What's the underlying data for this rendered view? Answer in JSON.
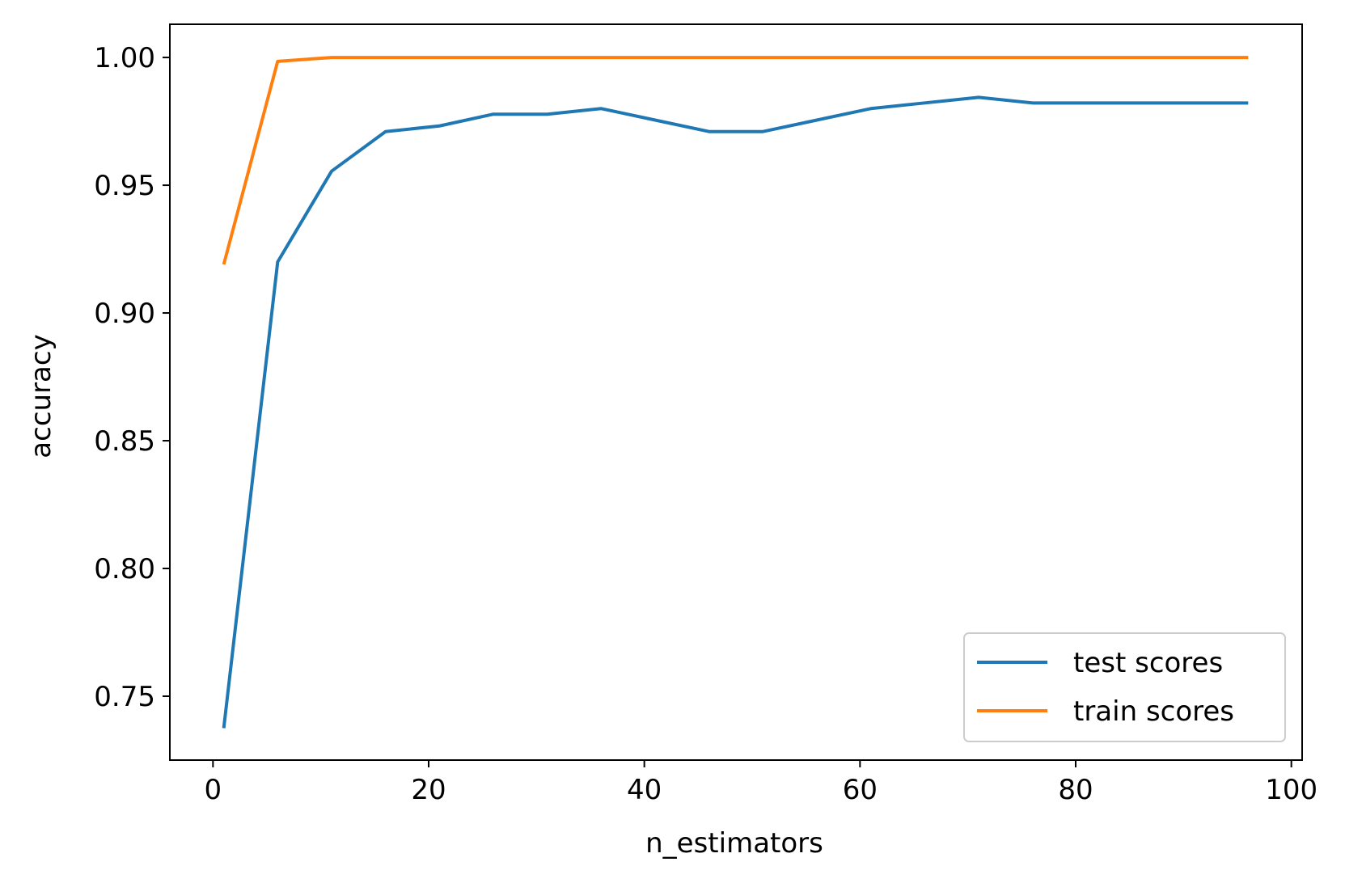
{
  "chart_data": {
    "type": "line",
    "title": "",
    "xlabel": "n_estimators",
    "ylabel": "accuracy",
    "xlim": [
      -4,
      101
    ],
    "ylim": [
      0.725,
      1.013
    ],
    "xticks": [
      0,
      20,
      40,
      60,
      80,
      100
    ],
    "xtick_labels": [
      "0",
      "20",
      "40",
      "60",
      "80",
      "100"
    ],
    "yticks": [
      0.75,
      0.8,
      0.85,
      0.9,
      0.95,
      1.0
    ],
    "ytick_labels": [
      "0.75",
      "0.80",
      "0.85",
      "0.90",
      "0.95",
      "1.00"
    ],
    "grid": false,
    "legend_position": "lower-right",
    "x": [
      1,
      6,
      11,
      16,
      21,
      26,
      31,
      36,
      41,
      46,
      51,
      56,
      61,
      66,
      71,
      76,
      81,
      86,
      91,
      96
    ],
    "series": [
      {
        "name": "test scores",
        "color": "#1f77b4",
        "values": [
          0.7375,
          0.92,
          0.9555,
          0.971,
          0.9732,
          0.9778,
          0.9778,
          0.98,
          0.9755,
          0.971,
          0.971,
          0.9755,
          0.98,
          0.9822,
          0.9844,
          0.9822,
          0.9822,
          0.9822,
          0.9822,
          0.9822
        ]
      },
      {
        "name": "train scores",
        "color": "#ff7f0e",
        "values": [
          0.919,
          0.9985,
          1.0,
          1.0,
          1.0,
          1.0,
          1.0,
          1.0,
          1.0,
          1.0,
          1.0,
          1.0,
          1.0,
          1.0,
          1.0,
          1.0,
          1.0,
          1.0,
          1.0,
          1.0
        ]
      }
    ]
  }
}
